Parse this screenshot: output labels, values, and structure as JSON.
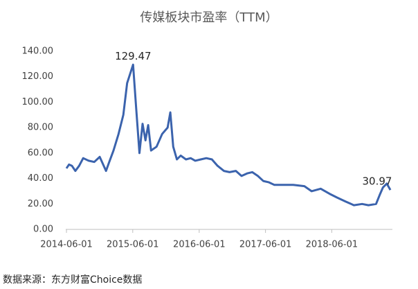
{
  "chart_data": {
    "type": "line",
    "title": "传媒板块市盈率（TTM）",
    "source": "数据来源：东方财富Choice数据",
    "x": [
      "2014-06-01",
      "2014-06-15",
      "2014-07-01",
      "2014-07-20",
      "2014-08-10",
      "2014-09-01",
      "2014-10-01",
      "2014-11-01",
      "2014-12-01",
      "2015-01-05",
      "2015-01-20",
      "2015-02-15",
      "2015-03-15",
      "2015-04-10",
      "2015-05-01",
      "2015-06-03",
      "2015-06-20",
      "2015-07-08",
      "2015-07-25",
      "2015-08-10",
      "2015-08-25",
      "2015-09-10",
      "2015-10-10",
      "2015-11-10",
      "2015-12-10",
      "2015-12-25",
      "2016-01-10",
      "2016-01-30",
      "2016-02-20",
      "2016-03-20",
      "2016-04-15",
      "2016-05-10",
      "2016-06-10",
      "2016-07-10",
      "2016-08-10",
      "2016-09-10",
      "2016-10-15",
      "2016-11-15",
      "2016-12-20",
      "2017-01-20",
      "2017-02-20",
      "2017-03-20",
      "2017-04-20",
      "2017-05-20",
      "2017-06-20",
      "2017-07-20",
      "2017-09-01",
      "2017-11-01",
      "2018-01-01",
      "2018-02-10",
      "2018-04-01",
      "2018-05-20",
      "2018-07-01",
      "2018-08-15",
      "2018-10-01",
      "2018-11-15",
      "2018-12-20",
      "2019-01-31",
      "2019-02-20",
      "2019-03-10",
      "2019-03-31",
      "2019-04-20"
    ],
    "series": [
      {
        "name": "传媒板块市盈率",
        "color": "#3b63ad",
        "values": [
          48,
          51,
          50,
          46,
          50,
          56,
          54,
          53,
          57,
          46,
          52,
          62,
          75,
          90,
          115,
          129.47,
          95,
          60,
          83,
          70,
          82,
          62,
          65,
          75,
          80,
          92,
          65,
          55,
          58,
          55,
          56,
          54,
          55,
          56,
          55,
          50,
          46,
          45,
          46,
          42,
          44,
          45,
          42,
          38,
          37,
          35,
          35,
          35,
          34,
          30,
          32,
          28,
          25,
          22,
          19,
          20,
          19,
          20,
          27,
          33,
          36,
          30.97
        ]
      }
    ],
    "annotations": [
      {
        "x": "2015-06-03",
        "value": 129.47
      },
      {
        "x": "2019-04-20",
        "value": 30.97
      }
    ],
    "xlim": [
      "2014-05-28",
      "2019-05-01"
    ],
    "xticks": [
      "2014-06-01",
      "2015-06-01",
      "2016-06-01",
      "2017-06-01",
      "2018-06-01"
    ],
    "ylim": [
      0,
      140
    ],
    "yticks": [
      {
        "value": 0,
        "label": "0.00"
      },
      {
        "value": 20,
        "label": "20.00"
      },
      {
        "value": 40,
        "label": "40.00"
      },
      {
        "value": 60,
        "label": "60.00"
      },
      {
        "value": 80,
        "label": "80.00"
      },
      {
        "value": 100,
        "label": "100.00"
      },
      {
        "value": 120,
        "label": "120.00"
      },
      {
        "value": 140,
        "label": "140.00"
      }
    ]
  }
}
